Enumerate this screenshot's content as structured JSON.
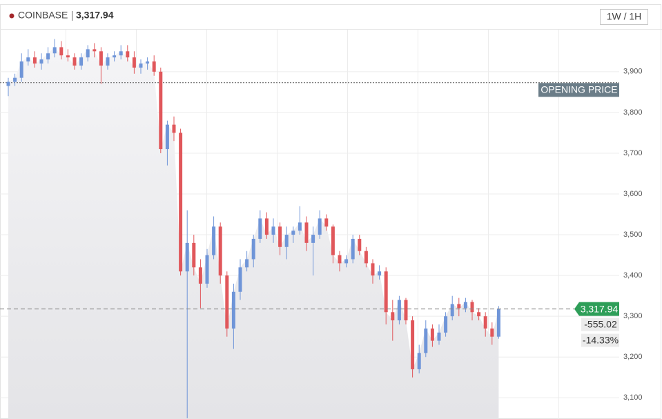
{
  "chart_data": {
    "type": "candlestick",
    "title": "COINBASE",
    "price_label": "3,317.94",
    "interval": "1W / 1H",
    "up_color": "#6f95d8",
    "down_color": "#e0575b",
    "ylim": [
      3048,
      4003
    ],
    "yticks": [
      {
        "value": 3100,
        "label": "3,100"
      },
      {
        "value": 3200,
        "label": "3,200"
      },
      {
        "value": 3300,
        "label": "3,300"
      },
      {
        "value": 3400,
        "label": "3,400"
      },
      {
        "value": 3500,
        "label": "3,500"
      },
      {
        "value": 3600,
        "label": "3,600"
      },
      {
        "value": 3700,
        "label": "3,700"
      },
      {
        "value": 3800,
        "label": "3,800"
      },
      {
        "value": 3900,
        "label": "3,900"
      }
    ],
    "grid": true,
    "opening_price": {
      "label": "OPENING PRICE",
      "value": 3872.96
    },
    "current_price": {
      "label": "3,317.94",
      "value": 3317.94
    },
    "change": "-555.02",
    "change_pct": "-14.33%",
    "open": [
      3865,
      3875,
      3885,
      3925,
      3935,
      3920,
      3930,
      3945,
      3960,
      3940,
      3935,
      3915,
      3935,
      3955,
      3950,
      3915,
      3935,
      3940,
      3950,
      3935,
      3910,
      3920,
      3925,
      3900,
      3710,
      3770,
      3750,
      3410,
      3480,
      3420,
      3380,
      3450,
      3520,
      3400,
      3270,
      3360,
      3420,
      3440,
      3490,
      3540,
      3500,
      3520,
      3470,
      3500,
      3510,
      3530,
      3480,
      3500,
      3540,
      3520,
      3450,
      3430,
      3440,
      3490,
      3460,
      3430,
      3400,
      3410,
      3310,
      3290,
      3340,
      3290,
      3170,
      3210,
      3270,
      3240,
      3260,
      3300,
      3330,
      3320,
      3335,
      3310,
      3300,
      3270,
      3250
    ],
    "high": [
      3885,
      3895,
      3945,
      3955,
      3950,
      3945,
      3960,
      3980,
      3975,
      3955,
      3945,
      3945,
      3965,
      3970,
      3960,
      3945,
      3950,
      3965,
      3965,
      3950,
      3930,
      3935,
      3940,
      3910,
      3780,
      3790,
      3760,
      3560,
      3500,
      3440,
      3465,
      3545,
      3530,
      3410,
      3380,
      3440,
      3460,
      3500,
      3560,
      3555,
      3540,
      3530,
      3520,
      3520,
      3570,
      3545,
      3520,
      3560,
      3550,
      3525,
      3460,
      3450,
      3500,
      3500,
      3470,
      3440,
      3425,
      3420,
      3340,
      3350,
      3345,
      3300,
      3230,
      3290,
      3280,
      3280,
      3310,
      3350,
      3345,
      3345,
      3340,
      3320,
      3310,
      3285,
      3325
    ],
    "low": [
      3840,
      3865,
      3875,
      3915,
      3910,
      3905,
      3920,
      3935,
      3930,
      3925,
      3905,
      3905,
      3925,
      3935,
      3870,
      3905,
      3925,
      3930,
      3925,
      3895,
      3895,
      3905,
      3890,
      3700,
      3670,
      3730,
      3400,
      3050,
      3400,
      3320,
      3370,
      3440,
      3380,
      3250,
      3220,
      3340,
      3410,
      3420,
      3480,
      3490,
      3480,
      3450,
      3440,
      3480,
      3500,
      3460,
      3400,
      3490,
      3510,
      3430,
      3410,
      3420,
      3430,
      3450,
      3420,
      3380,
      3390,
      3280,
      3240,
      3280,
      3280,
      3150,
      3160,
      3200,
      3225,
      3230,
      3250,
      3290,
      3300,
      3310,
      3290,
      3290,
      3250,
      3230,
      3245
    ],
    "close": [
      3875,
      3885,
      3925,
      3935,
      3920,
      3930,
      3945,
      3960,
      3940,
      3935,
      3915,
      3935,
      3955,
      3950,
      3915,
      3935,
      3940,
      3950,
      3935,
      3910,
      3920,
      3925,
      3900,
      3710,
      3770,
      3750,
      3410,
      3480,
      3420,
      3380,
      3450,
      3520,
      3400,
      3270,
      3360,
      3420,
      3440,
      3490,
      3540,
      3500,
      3520,
      3470,
      3500,
      3510,
      3530,
      3480,
      3500,
      3540,
      3520,
      3450,
      3430,
      3440,
      3490,
      3460,
      3430,
      3400,
      3410,
      3310,
      3290,
      3340,
      3290,
      3170,
      3210,
      3270,
      3240,
      3260,
      3300,
      3330,
      3320,
      3335,
      3310,
      3300,
      3270,
      3250,
      3317.94
    ]
  }
}
